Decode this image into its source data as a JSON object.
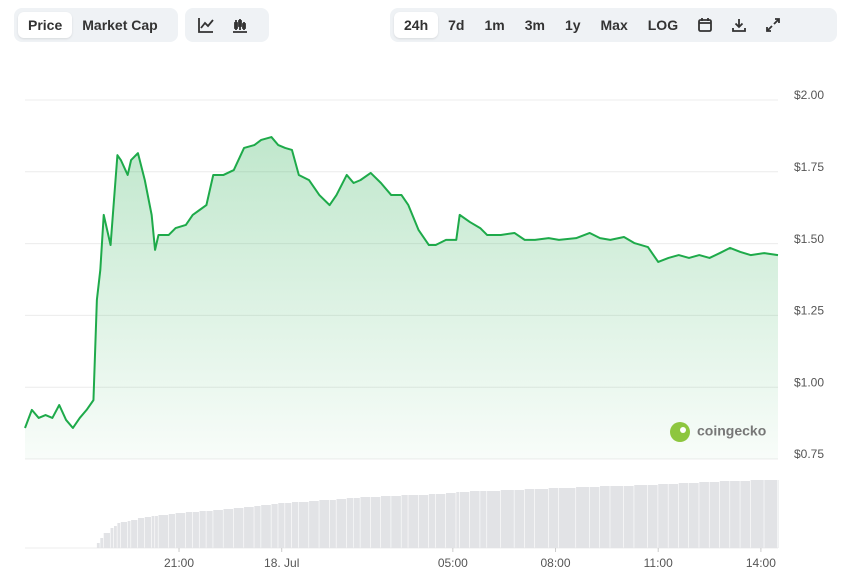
{
  "toolbar": {
    "views": [
      "Price",
      "Market Cap"
    ],
    "ranges": [
      "24h",
      "7d",
      "1m",
      "3m",
      "1y",
      "Max",
      "LOG"
    ]
  },
  "chart_data": {
    "type": "area",
    "watermark": "coingecko",
    "x": [
      16.5,
      16.7,
      16.9,
      17.1,
      17.3,
      17.5,
      17.7,
      17.9,
      18.1,
      18.3,
      18.5,
      18.6,
      18.7,
      18.8,
      19.0,
      19.1,
      19.2,
      19.3,
      19.5,
      19.6,
      19.8,
      20.0,
      20.2,
      20.3,
      20.4,
      20.7,
      20.9,
      21.2,
      21.4,
      21.6,
      21.8,
      22.0,
      22.3,
      22.6,
      22.9,
      23.2,
      23.4,
      23.7,
      23.9,
      24.1,
      24.3,
      24.5,
      24.8,
      25.1,
      25.4,
      25.6,
      25.9,
      26.1,
      26.3,
      26.6,
      26.9,
      27.2,
      27.5,
      27.7,
      28.0,
      28.3,
      28.5,
      28.8,
      29.1,
      29.2,
      29.5,
      29.8,
      30.0,
      30.4,
      30.8,
      31.1,
      31.4,
      31.8,
      32.1,
      32.6,
      33.0,
      33.3,
      33.6,
      34.0,
      34.3,
      34.7,
      35.0,
      35.3,
      35.6,
      35.9,
      36.2,
      36.5,
      36.8,
      37.1,
      37.4,
      37.7,
      38.1,
      38.5
    ],
    "series": [
      {
        "name": "Price",
        "color": "#1eaa4a",
        "values": [
          0.858,
          0.921,
          0.893,
          0.903,
          0.893,
          0.938,
          0.886,
          0.858,
          0.893,
          0.921,
          0.955,
          1.304,
          1.408,
          1.6,
          1.495,
          1.652,
          1.808,
          1.791,
          1.739,
          1.791,
          1.815,
          1.721,
          1.6,
          1.478,
          1.53,
          1.53,
          1.554,
          1.565,
          1.6,
          1.617,
          1.634,
          1.739,
          1.739,
          1.756,
          1.833,
          1.843,
          1.861,
          1.871,
          1.843,
          1.833,
          1.826,
          1.739,
          1.721,
          1.669,
          1.634,
          1.669,
          1.739,
          1.711,
          1.721,
          1.746,
          1.711,
          1.669,
          1.669,
          1.634,
          1.547,
          1.495,
          1.495,
          1.513,
          1.513,
          1.6,
          1.575,
          1.554,
          1.53,
          1.53,
          1.537,
          1.513,
          1.513,
          1.519,
          1.513,
          1.519,
          1.537,
          1.519,
          1.513,
          1.523,
          1.502,
          1.488,
          1.436,
          1.45,
          1.46,
          1.45,
          1.46,
          1.45,
          1.467,
          1.485,
          1.471,
          1.46,
          1.467,
          1.46
        ]
      }
    ],
    "volume": [
      0,
      0,
      0,
      0,
      0,
      0,
      0,
      0,
      0,
      0,
      0,
      5,
      10,
      15,
      20,
      22,
      25,
      26,
      27,
      28,
      30,
      31,
      32,
      32,
      33,
      34,
      35,
      36,
      36,
      37,
      37,
      38,
      39,
      40,
      41,
      42,
      43,
      44,
      45,
      45,
      46,
      46,
      47,
      48,
      48,
      49,
      50,
      50,
      51,
      51,
      52,
      52,
      53,
      53,
      53,
      54,
      54,
      55,
      56,
      56,
      57,
      57,
      57,
      58,
      58,
      59,
      59,
      60,
      60,
      61,
      61,
      62,
      62,
      62,
      63,
      63,
      64,
      64,
      65,
      65,
      66,
      66,
      67,
      67,
      67,
      68,
      68,
      68
    ],
    "xlim": [
      16.5,
      38.5
    ],
    "xticks": [
      {
        "value": 21,
        "label": "21:00"
      },
      {
        "value": 24,
        "label": "18. Jul"
      },
      {
        "value": 29,
        "label": "05:00"
      },
      {
        "value": 32,
        "label": "08:00"
      },
      {
        "value": 35,
        "label": "11:00"
      },
      {
        "value": 38,
        "label": "14:00"
      }
    ],
    "ylim": [
      0.75,
      2.0
    ],
    "yticks": [
      {
        "value": 0.75,
        "label": "$0.75"
      },
      {
        "value": 1.0,
        "label": "$1.00"
      },
      {
        "value": 1.25,
        "label": "$1.25"
      },
      {
        "value": 1.5,
        "label": "$1.50"
      },
      {
        "value": 1.75,
        "label": "$1.75"
      },
      {
        "value": 2.0,
        "label": "$2.00"
      }
    ],
    "grid": true
  }
}
